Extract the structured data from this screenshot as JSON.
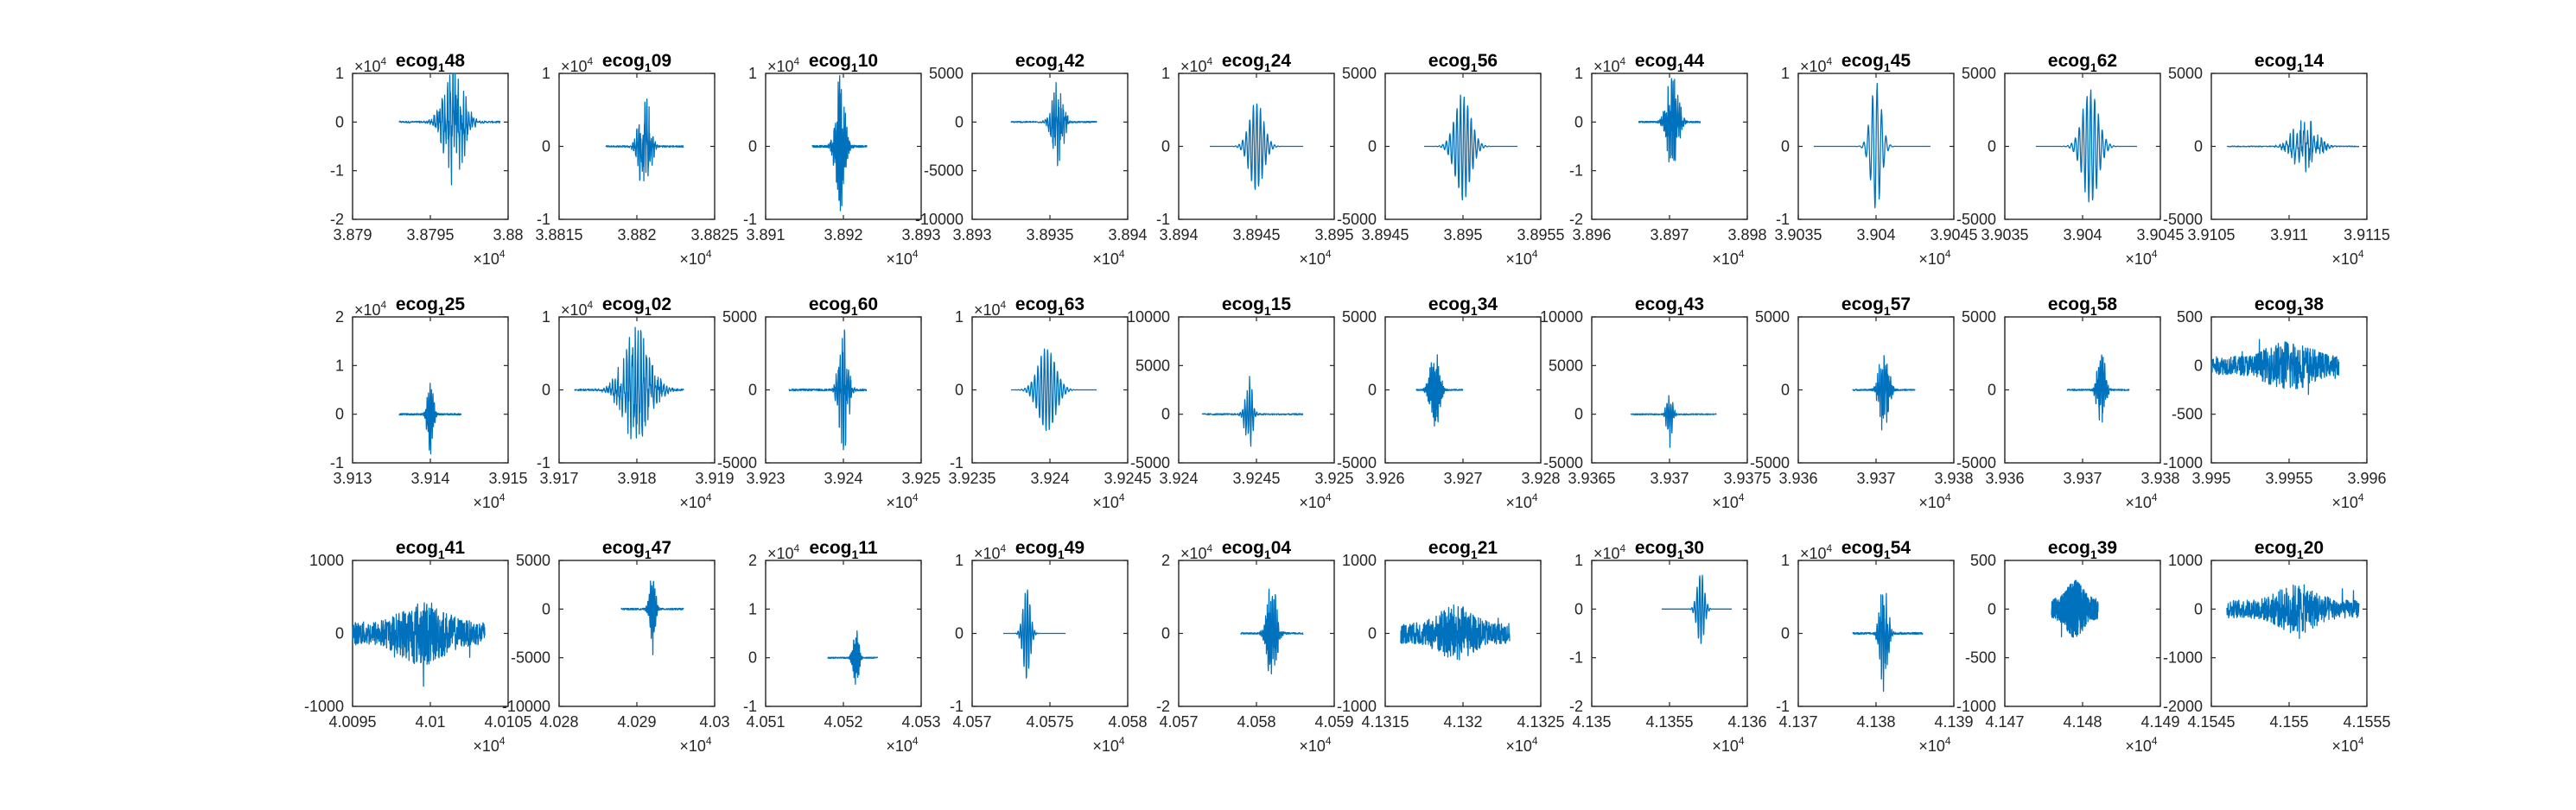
{
  "figure": {
    "trace_color": "#0072BD",
    "axes_color": "#262626",
    "background": "#ffffff",
    "subscript_char": "1"
  },
  "chart_data": [
    {
      "type": "line",
      "title": "ecog_48",
      "title_base": "ecog",
      "title_rest": "48",
      "xlim": [
        3.879,
        3.88
      ],
      "xticks": [
        "3.879",
        "3.8795",
        "3.88"
      ],
      "x_exponent": "4",
      "ylim": [
        -2,
        1
      ],
      "yticks": [
        "-2",
        "-1",
        "0",
        "1"
      ],
      "y_exponent": "4",
      "signal": {
        "center": 0.65,
        "width": 0.22,
        "amp": 0.8,
        "offset": 0.667,
        "kind": "burst",
        "span": [
          0.3,
          0.95
        ]
      }
    },
    {
      "type": "line",
      "title": "ecog_09",
      "title_base": "ecog",
      "title_rest": "09",
      "xlim": [
        3.8815,
        3.8825
      ],
      "xticks": [
        "3.8815",
        "3.882",
        "3.8825"
      ],
      "x_exponent": "4",
      "ylim": [
        -1,
        1
      ],
      "yticks": [
        "-1",
        "0",
        "1"
      ],
      "y_exponent": "4",
      "signal": {
        "center": 0.55,
        "width": 0.12,
        "amp": 0.7,
        "offset": 0.5,
        "kind": "burst",
        "span": [
          0.3,
          0.8
        ]
      }
    },
    {
      "type": "line",
      "title": "ecog_10",
      "title_base": "ecog",
      "title_rest": "10",
      "xlim": [
        3.891,
        3.893
      ],
      "xticks": [
        "3.891",
        "3.892",
        "3.893"
      ],
      "x_exponent": "4",
      "ylim": [
        -1,
        1
      ],
      "yticks": [
        "-1",
        "0",
        "1"
      ],
      "y_exponent": "4",
      "signal": {
        "center": 0.48,
        "width": 0.1,
        "amp": 0.9,
        "offset": 0.5,
        "kind": "burst",
        "span": [
          0.3,
          0.65
        ]
      }
    },
    {
      "type": "line",
      "title": "ecog_42",
      "title_base": "ecog",
      "title_rest": "42",
      "xlim": [
        3.893,
        3.894
      ],
      "xticks": [
        "3.893",
        "3.8935",
        "3.894"
      ],
      "x_exponent": "4",
      "ylim": [
        -10000,
        5000
      ],
      "yticks": [
        "-10000",
        "-5000",
        "0",
        "5000"
      ],
      "y_exponent": "",
      "signal": {
        "center": 0.55,
        "width": 0.12,
        "amp": 0.6,
        "offset": 0.667,
        "kind": "burst",
        "span": [
          0.25,
          0.8
        ]
      }
    },
    {
      "type": "line",
      "title": "ecog_24",
      "title_base": "ecog",
      "title_rest": "24",
      "xlim": [
        3.894,
        3.895
      ],
      "xticks": [
        "3.894",
        "3.8945",
        "3.895"
      ],
      "x_exponent": "4",
      "ylim": [
        -1,
        1
      ],
      "yticks": [
        "-1",
        "0",
        "1"
      ],
      "y_exponent": "4",
      "signal": {
        "center": 0.5,
        "width": 0.16,
        "amp": 0.6,
        "offset": 0.5,
        "kind": "wave",
        "span": [
          0.2,
          0.8
        ]
      }
    },
    {
      "type": "line",
      "title": "ecog_56",
      "title_base": "ecog",
      "title_rest": "56",
      "xlim": [
        3.8945,
        3.8955
      ],
      "xticks": [
        "3.8945",
        "3.895",
        "3.8955"
      ],
      "x_exponent": "4",
      "ylim": [
        -5000,
        5000
      ],
      "yticks": [
        "-5000",
        "0",
        "5000"
      ],
      "y_exponent": "",
      "signal": {
        "center": 0.5,
        "width": 0.18,
        "amp": 0.7,
        "offset": 0.5,
        "kind": "wave",
        "span": [
          0.25,
          0.85
        ]
      }
    },
    {
      "type": "line",
      "title": "ecog_44",
      "title_base": "ecog",
      "title_rest": "44",
      "xlim": [
        3.896,
        3.898
      ],
      "xticks": [
        "3.896",
        "3.897",
        "3.898"
      ],
      "x_exponent": "4",
      "ylim": [
        -2,
        1
      ],
      "yticks": [
        "-2",
        "-1",
        "0",
        "1"
      ],
      "y_exponent": "4",
      "signal": {
        "center": 0.52,
        "width": 0.12,
        "amp": 0.65,
        "offset": 0.667,
        "kind": "burst",
        "span": [
          0.3,
          0.7
        ]
      }
    },
    {
      "type": "line",
      "title": "ecog_45",
      "title_base": "ecog",
      "title_rest": "45",
      "xlim": [
        3.9035,
        3.9045
      ],
      "xticks": [
        "3.9035",
        "3.904",
        "3.9045"
      ],
      "x_exponent": "4",
      "ylim": [
        -1,
        1
      ],
      "yticks": [
        "-1",
        "0",
        "1"
      ],
      "y_exponent": "4",
      "signal": {
        "center": 0.5,
        "width": 0.12,
        "amp": 0.85,
        "offset": 0.5,
        "kind": "wave",
        "span": [
          0.1,
          0.85
        ]
      }
    },
    {
      "type": "line",
      "title": "ecog_62",
      "title_base": "ecog",
      "title_rest": "62",
      "xlim": [
        3.9035,
        3.9045
      ],
      "xticks": [
        "3.9035",
        "3.904",
        "3.9045"
      ],
      "x_exponent": "4",
      "ylim": [
        -5000,
        5000
      ],
      "yticks": [
        "-5000",
        "0",
        "5000"
      ],
      "y_exponent": "",
      "signal": {
        "center": 0.55,
        "width": 0.18,
        "amp": 0.75,
        "offset": 0.5,
        "kind": "wave",
        "span": [
          0.2,
          0.85
        ]
      }
    },
    {
      "type": "line",
      "title": "ecog_14",
      "title_base": "ecog",
      "title_rest": "14",
      "xlim": [
        3.9105,
        3.9115
      ],
      "xticks": [
        "3.9105",
        "3.911",
        "3.9115"
      ],
      "x_exponent": "4",
      "ylim": [
        -5000,
        5000
      ],
      "yticks": [
        "-5000",
        "0",
        "5000"
      ],
      "y_exponent": "",
      "signal": {
        "center": 0.6,
        "width": 0.25,
        "amp": 0.4,
        "offset": 0.5,
        "kind": "burst",
        "span": [
          0.1,
          0.95
        ]
      }
    },
    {
      "type": "line",
      "title": "ecog_25",
      "title_base": "ecog",
      "title_rest": "25",
      "xlim": [
        3.913,
        3.915
      ],
      "xticks": [
        "3.913",
        "3.914",
        "3.915"
      ],
      "x_exponent": "4",
      "ylim": [
        -1,
        2
      ],
      "yticks": [
        "-1",
        "0",
        "1",
        "2"
      ],
      "y_exponent": "4",
      "signal": {
        "center": 0.5,
        "width": 0.06,
        "amp": 0.55,
        "offset": 0.333,
        "kind": "spike",
        "span": [
          0.3,
          0.7
        ]
      }
    },
    {
      "type": "line",
      "title": "ecog_02",
      "title_base": "ecog",
      "title_rest": "02",
      "xlim": [
        3.917,
        3.919
      ],
      "xticks": [
        "3.917",
        "3.918",
        "3.919"
      ],
      "x_exponent": "4",
      "ylim": [
        -1,
        1
      ],
      "yticks": [
        "-1",
        "0",
        "1"
      ],
      "y_exponent": "4",
      "signal": {
        "center": 0.5,
        "width": 0.3,
        "amp": 0.8,
        "offset": 0.5,
        "kind": "burst",
        "span": [
          0.1,
          0.8
        ]
      }
    },
    {
      "type": "line",
      "title": "ecog_60",
      "title_base": "ecog",
      "title_rest": "60",
      "xlim": [
        3.923,
        3.925
      ],
      "xticks": [
        "3.923",
        "3.924",
        "3.925"
      ],
      "x_exponent": "4",
      "ylim": [
        -5000,
        5000
      ],
      "yticks": [
        "-5000",
        "0",
        "5000"
      ],
      "y_exponent": "",
      "signal": {
        "center": 0.5,
        "width": 0.1,
        "amp": 0.85,
        "offset": 0.5,
        "kind": "burst",
        "span": [
          0.15,
          0.65
        ]
      }
    },
    {
      "type": "line",
      "title": "ecog_63",
      "title_base": "ecog",
      "title_rest": "63",
      "xlim": [
        3.9235,
        3.9245
      ],
      "xticks": [
        "3.9235",
        "3.924",
        "3.9245"
      ],
      "x_exponent": "4",
      "ylim": [
        -1,
        1
      ],
      "yticks": [
        "-1",
        "0",
        "1"
      ],
      "y_exponent": "4",
      "signal": {
        "center": 0.48,
        "width": 0.2,
        "amp": 0.55,
        "offset": 0.5,
        "kind": "wave",
        "span": [
          0.25,
          0.8
        ]
      }
    },
    {
      "type": "line",
      "title": "ecog_15",
      "title_base": "ecog",
      "title_rest": "15",
      "xlim": [
        3.924,
        3.925
      ],
      "xticks": [
        "3.924",
        "3.9245",
        "3.925"
      ],
      "x_exponent": "4",
      "ylim": [
        -5000,
        10000
      ],
      "yticks": [
        "-5000",
        "0",
        "5000",
        "10000"
      ],
      "y_exponent": "",
      "signal": {
        "center": 0.45,
        "width": 0.08,
        "amp": 0.5,
        "offset": 0.333,
        "kind": "spike",
        "span": [
          0.15,
          0.8
        ]
      }
    },
    {
      "type": "line",
      "title": "ecog_34",
      "title_base": "ecog",
      "title_rest": "34",
      "xlim": [
        3.926,
        3.928
      ],
      "xticks": [
        "3.926",
        "3.927",
        "3.928"
      ],
      "x_exponent": "4",
      "ylim": [
        -5000,
        5000
      ],
      "yticks": [
        "-5000",
        "0",
        "5000"
      ],
      "y_exponent": "",
      "signal": {
        "center": 0.32,
        "width": 0.1,
        "amp": 0.55,
        "offset": 0.5,
        "kind": "burst",
        "span": [
          0.2,
          0.5
        ]
      }
    },
    {
      "type": "line",
      "title": "ecog_43",
      "title_base": "ecog",
      "title_rest": "43",
      "xlim": [
        3.9365,
        3.9375
      ],
      "xticks": [
        "3.9365",
        "3.937",
        "3.9375"
      ],
      "x_exponent": "4",
      "ylim": [
        -5000,
        10000
      ],
      "yticks": [
        "-5000",
        "0",
        "5000",
        "10000"
      ],
      "y_exponent": "",
      "signal": {
        "center": 0.5,
        "width": 0.06,
        "amp": 0.4,
        "offset": 0.333,
        "kind": "spike",
        "span": [
          0.25,
          0.8
        ]
      }
    },
    {
      "type": "line",
      "title": "ecog_57",
      "title_base": "ecog",
      "title_rest": "57",
      "xlim": [
        3.936,
        3.938
      ],
      "xticks": [
        "3.936",
        "3.937",
        "3.938"
      ],
      "x_exponent": "4",
      "ylim": [
        -5000,
        5000
      ],
      "yticks": [
        "-5000",
        "0",
        "5000"
      ],
      "y_exponent": "",
      "signal": {
        "center": 0.55,
        "width": 0.1,
        "amp": 0.6,
        "offset": 0.5,
        "kind": "burst",
        "span": [
          0.35,
          0.75
        ]
      }
    },
    {
      "type": "line",
      "title": "ecog_58",
      "title_base": "ecog",
      "title_rest": "58",
      "xlim": [
        3.936,
        3.938
      ],
      "xticks": [
        "3.936",
        "3.937",
        "3.938"
      ],
      "x_exponent": "4",
      "ylim": [
        -5000,
        5000
      ],
      "yticks": [
        "-5000",
        "0",
        "5000"
      ],
      "y_exponent": "",
      "signal": {
        "center": 0.62,
        "width": 0.08,
        "amp": 0.6,
        "offset": 0.5,
        "kind": "burst",
        "span": [
          0.4,
          0.8
        ]
      }
    },
    {
      "type": "line",
      "title": "ecog_38",
      "title_base": "ecog",
      "title_rest": "38",
      "xlim": [
        3.995,
        3.996
      ],
      "xticks": [
        "3.995",
        "3.9955",
        "3.996"
      ],
      "x_exponent": "4",
      "ylim": [
        -1000,
        500
      ],
      "yticks": [
        "-1000",
        "-500",
        "0",
        "500"
      ],
      "y_exponent": "",
      "signal": {
        "center": 0.5,
        "width": 0.45,
        "amp": 0.35,
        "offset": 0.667,
        "kind": "noise",
        "span": [
          0.0,
          0.82
        ]
      }
    },
    {
      "type": "line",
      "title": "ecog_41",
      "title_base": "ecog",
      "title_rest": "41",
      "xlim": [
        4.0095,
        4.0105
      ],
      "xticks": [
        "4.0095",
        "4.01",
        "4.0105"
      ],
      "x_exponent": "4",
      "ylim": [
        -1000,
        1000
      ],
      "yticks": [
        "-1000",
        "0",
        "1000"
      ],
      "y_exponent": "",
      "signal": {
        "center": 0.45,
        "width": 0.45,
        "amp": 0.45,
        "offset": 0.5,
        "kind": "noise",
        "span": [
          0.0,
          0.85
        ]
      }
    },
    {
      "type": "line",
      "title": "ecog_47",
      "title_base": "ecog",
      "title_rest": "47",
      "xlim": [
        4.028,
        4.03
      ],
      "xticks": [
        "4.028",
        "4.029",
        "4.03"
      ],
      "x_exponent": "4",
      "ylim": [
        -10000,
        5000
      ],
      "yticks": [
        "-10000",
        "-5000",
        "0",
        "5000"
      ],
      "y_exponent": "",
      "signal": {
        "center": 0.6,
        "width": 0.06,
        "amp": 0.55,
        "offset": 0.667,
        "kind": "spike",
        "span": [
          0.4,
          0.8
        ]
      }
    },
    {
      "type": "line",
      "title": "ecog_11",
      "title_base": "ecog",
      "title_rest": "11",
      "xlim": [
        4.051,
        4.053
      ],
      "xticks": [
        "4.051",
        "4.052",
        "4.053"
      ],
      "x_exponent": "4",
      "ylim": [
        -1,
        2
      ],
      "yticks": [
        "-1",
        "0",
        "1",
        "2"
      ],
      "y_exponent": "4",
      "signal": {
        "center": 0.58,
        "width": 0.06,
        "amp": 0.4,
        "offset": 0.333,
        "kind": "spike",
        "span": [
          0.4,
          0.72
        ]
      }
    },
    {
      "type": "line",
      "title": "ecog_49",
      "title_base": "ecog",
      "title_rest": "49",
      "xlim": [
        4.057,
        4.058
      ],
      "xticks": [
        "4.057",
        "4.0575",
        "4.058"
      ],
      "x_exponent": "4",
      "ylim": [
        -1,
        1
      ],
      "yticks": [
        "-1",
        "0",
        "1"
      ],
      "y_exponent": "4",
      "signal": {
        "center": 0.35,
        "width": 0.08,
        "amp": 0.6,
        "offset": 0.5,
        "kind": "wave",
        "span": [
          0.2,
          0.6
        ]
      }
    },
    {
      "type": "line",
      "title": "ecog_04",
      "title_base": "ecog",
      "title_rest": "04",
      "xlim": [
        4.057,
        4.059
      ],
      "xticks": [
        "4.057",
        "4.058",
        "4.059"
      ],
      "x_exponent": "4",
      "ylim": [
        -2,
        2
      ],
      "yticks": [
        "-2",
        "0",
        "2"
      ],
      "y_exponent": "4",
      "signal": {
        "center": 0.6,
        "width": 0.1,
        "amp": 0.7,
        "offset": 0.5,
        "kind": "burst",
        "span": [
          0.4,
          0.8
        ]
      }
    },
    {
      "type": "line",
      "title": "ecog_21",
      "title_base": "ecog",
      "title_rest": "21",
      "xlim": [
        4.1315,
        4.1325
      ],
      "xticks": [
        "4.1315",
        "4.132",
        "4.1325"
      ],
      "x_exponent": "4",
      "ylim": [
        -1000,
        1000
      ],
      "yticks": [
        "-1000",
        "0",
        "1000"
      ],
      "y_exponent": "",
      "signal": {
        "center": 0.45,
        "width": 0.35,
        "amp": 0.4,
        "offset": 0.5,
        "kind": "noise",
        "span": [
          0.1,
          0.8
        ]
      }
    },
    {
      "type": "line",
      "title": "ecog_30",
      "title_base": "ecog",
      "title_rest": "30",
      "xlim": [
        4.135,
        4.136
      ],
      "xticks": [
        "4.135",
        "4.1355",
        "4.136"
      ],
      "x_exponent": "4",
      "ylim": [
        -2,
        1
      ],
      "yticks": [
        "-2",
        "-1",
        "0",
        "1"
      ],
      "y_exponent": "4",
      "signal": {
        "center": 0.7,
        "width": 0.08,
        "amp": 0.5,
        "offset": 0.667,
        "kind": "wave",
        "span": [
          0.45,
          0.9
        ]
      }
    },
    {
      "type": "line",
      "title": "ecog_54",
      "title_base": "ecog",
      "title_rest": "54",
      "xlim": [
        4.137,
        4.139
      ],
      "xticks": [
        "4.137",
        "4.138",
        "4.139"
      ],
      "x_exponent": "4",
      "ylim": [
        -1,
        1
      ],
      "yticks": [
        "-1",
        "0",
        "1"
      ],
      "y_exponent": "4",
      "signal": {
        "center": 0.55,
        "width": 0.08,
        "amp": 0.85,
        "offset": 0.5,
        "kind": "burst",
        "span": [
          0.35,
          0.8
        ]
      }
    },
    {
      "type": "line",
      "title": "ecog_39",
      "title_base": "ecog",
      "title_rest": "39",
      "xlim": [
        4.147,
        4.149
      ],
      "xticks": [
        "4.147",
        "4.148",
        "4.149"
      ],
      "x_exponent": "4",
      "ylim": [
        -1000,
        500
      ],
      "yticks": [
        "-1000",
        "-500",
        "0",
        "500"
      ],
      "y_exponent": "",
      "signal": {
        "center": 0.45,
        "width": 0.18,
        "amp": 0.4,
        "offset": 0.667,
        "kind": "noise",
        "span": [
          0.3,
          0.6
        ]
      }
    },
    {
      "type": "line",
      "title": "ecog_20",
      "title_base": "ecog",
      "title_rest": "20",
      "xlim": [
        4.1545,
        4.1555
      ],
      "xticks": [
        "4.1545",
        "4.155",
        "4.1555"
      ],
      "x_exponent": "4",
      "ylim": [
        -2000,
        1000
      ],
      "yticks": [
        "-2000",
        "-1000",
        "0",
        "1000"
      ],
      "y_exponent": "",
      "signal": {
        "center": 0.55,
        "width": 0.4,
        "amp": 0.35,
        "offset": 0.667,
        "kind": "noise",
        "span": [
          0.1,
          0.95
        ]
      }
    }
  ]
}
